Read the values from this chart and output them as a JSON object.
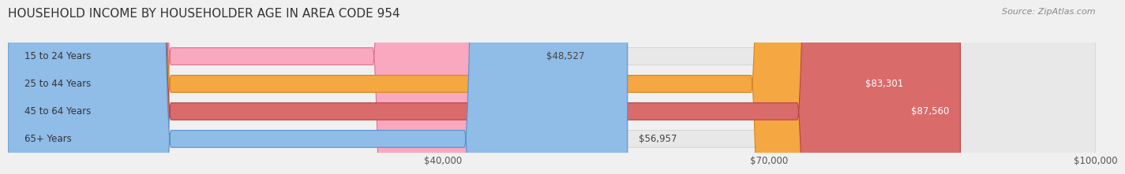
{
  "title": "HOUSEHOLD INCOME BY HOUSEHOLDER AGE IN AREA CODE 954",
  "source": "Source: ZipAtlas.com",
  "categories": [
    "15 to 24 Years",
    "25 to 44 Years",
    "45 to 64 Years",
    "65+ Years"
  ],
  "values": [
    48527,
    83301,
    87560,
    56957
  ],
  "bar_colors": [
    "#f9a8c0",
    "#f5a742",
    "#d96b6b",
    "#90bce8"
  ],
  "bar_edge_colors": [
    "#e07090",
    "#d4861e",
    "#b84444",
    "#5a90c8"
  ],
  "value_labels": [
    "$48,527",
    "$83,301",
    "$87,560",
    "$56,957"
  ],
  "xmin": 0,
  "xmax": 100000,
  "xticks": [
    40000,
    70000,
    100000
  ],
  "xticklabels": [
    "$40,000",
    "$70,000",
    "$100,000"
  ],
  "background_color": "#f0f0f0",
  "bar_background": "#e8e8e8",
  "title_fontsize": 11,
  "source_fontsize": 8,
  "label_fontsize": 8.5,
  "tick_fontsize": 8.5
}
